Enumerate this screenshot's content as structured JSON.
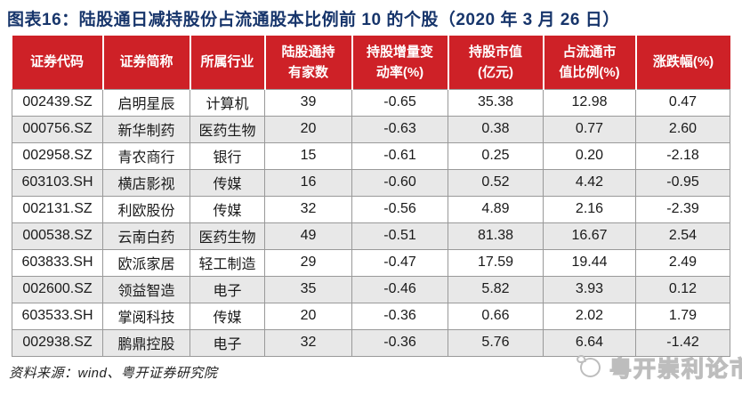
{
  "title": "图表16：陆股通日减持股份占流通股本比例前 10 的个股（2020 年 3 月 26 日）",
  "colors": {
    "header_bg": "#ce2127",
    "title": "#17356b",
    "row_alt": "#e8e8e8",
    "border": "#999999",
    "watermark": "#bdbdbd"
  },
  "chart_data": {
    "type": "table",
    "title": "图表16：陆股通日减持股份占流通股本比例前 10 的个股（2020 年 3 月 26 日）",
    "columns": [
      "证券代码",
      "证券简称",
      "所属行业",
      "陆股通持有家数",
      "持股增量变动率(%)",
      "持股市值(亿元)",
      "占流通市值比例(%)",
      "涨跌幅(%)"
    ],
    "rows": [
      [
        "002439.SZ",
        "启明星辰",
        "计算机",
        "39",
        "-0.65",
        "35.38",
        "12.98",
        "0.47"
      ],
      [
        "000756.SZ",
        "新华制药",
        "医药生物",
        "20",
        "-0.63",
        "0.38",
        "0.77",
        "2.60"
      ],
      [
        "002958.SZ",
        "青农商行",
        "银行",
        "15",
        "-0.61",
        "0.25",
        "0.20",
        "-2.18"
      ],
      [
        "603103.SH",
        "横店影视",
        "传媒",
        "16",
        "-0.60",
        "0.52",
        "4.42",
        "-0.95"
      ],
      [
        "002131.SZ",
        "利欧股份",
        "传媒",
        "32",
        "-0.56",
        "4.89",
        "2.16",
        "-2.39"
      ],
      [
        "000538.SZ",
        "云南白药",
        "医药生物",
        "49",
        "-0.51",
        "81.38",
        "16.67",
        "2.54"
      ],
      [
        "603833.SH",
        "欧派家居",
        "轻工制造",
        "29",
        "-0.47",
        "17.59",
        "19.44",
        "2.49"
      ],
      [
        "002600.SZ",
        "领益智造",
        "电子",
        "35",
        "-0.46",
        "5.82",
        "3.93",
        "0.12"
      ],
      [
        "603533.SH",
        "掌阅科技",
        "传媒",
        "20",
        "-0.36",
        "0.66",
        "2.02",
        "1.79"
      ],
      [
        "002938.SZ",
        "鹏鼎控股",
        "电子",
        "32",
        "-0.36",
        "5.76",
        "6.64",
        "-1.42"
      ]
    ]
  },
  "table": {
    "headers": [
      "证券代码",
      "证券简称",
      "所属行业",
      "陆股通持\n有家数",
      "持股增量变\n动率(%)",
      "持股市值\n(亿元)",
      "占流通市\n值比例(%)",
      "涨跌幅(%)"
    ]
  },
  "footer": {
    "source": "资料来源：wind、粤开证券研究院"
  },
  "watermark": {
    "text": "粤开崇利论市"
  }
}
